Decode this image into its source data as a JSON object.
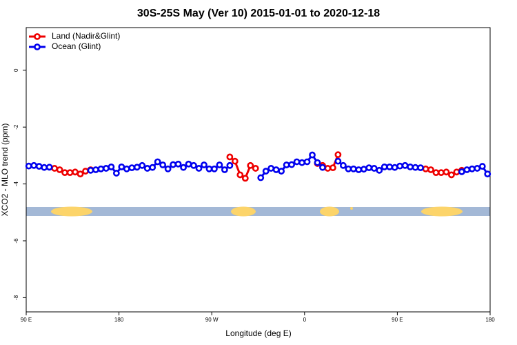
{
  "chart_data": {
    "type": "line",
    "title": "30S-25S May (Ver 10)   2015-01-01 to 2020-12-18",
    "xlabel": "Longitude (deg E)",
    "ylabel": "XCO2 - MLO trend (ppm)",
    "x": [
      92.5,
      97.5,
      102.5,
      107.5,
      112.5,
      117.5,
      122.5,
      127.5,
      132.5,
      137.5,
      142.5,
      147.5,
      152.5,
      157.5,
      162.5,
      167.5,
      172.5,
      177.5,
      182.5,
      187.5,
      192.5,
      197.5,
      202.5,
      207.5,
      212.5,
      217.5,
      222.5,
      227.5,
      232.5,
      237.5,
      242.5,
      247.5,
      252.5,
      257.5,
      262.5,
      267.5,
      272.5,
      277.5,
      282.5,
      287.5,
      292.5,
      297.5,
      302.5,
      307.5,
      312.5,
      317.5,
      322.5,
      327.5,
      332.5,
      337.5,
      342.5,
      347.5,
      352.5,
      357.5,
      362.5,
      367.5,
      372.5,
      377.5,
      382.5,
      387.5,
      392.5,
      397.5,
      402.5,
      407.5,
      412.5,
      417.5,
      422.5,
      427.5,
      432.5,
      437.5,
      442.5,
      447.5,
      452.5,
      457.5,
      462.5,
      467.5,
      472.5,
      477.5,
      482.5,
      487.5,
      492.5,
      497.5,
      502.5,
      507.5,
      512.5,
      517.5,
      522.5,
      527.5,
      532.5,
      537.5
    ],
    "series": [
      {
        "name": "Land (Nadir&Glint)",
        "color": "#ee0000",
        "values": [
          null,
          null,
          null,
          null,
          null,
          -3.45,
          -3.5,
          -3.6,
          -3.6,
          -3.58,
          -3.65,
          -3.55,
          -3.5,
          null,
          null,
          null,
          null,
          null,
          null,
          null,
          null,
          null,
          null,
          null,
          null,
          null,
          null,
          null,
          null,
          null,
          null,
          null,
          null,
          null,
          null,
          null,
          null,
          null,
          null,
          -3.05,
          -3.2,
          -3.68,
          -3.8,
          -3.35,
          -3.45,
          null,
          null,
          null,
          null,
          null,
          null,
          null,
          null,
          null,
          null,
          null,
          -3.28,
          -3.35,
          -3.45,
          -3.43,
          -2.97,
          null,
          null,
          null,
          null,
          null,
          null,
          null,
          null,
          null,
          null,
          null,
          null,
          null,
          null,
          null,
          null,
          -3.47,
          -3.5,
          -3.6,
          -3.6,
          -3.58,
          -3.68,
          -3.58,
          -3.52,
          null,
          null,
          null,
          null,
          null
        ]
      },
      {
        "name": "Ocean (Glint)",
        "color": "#0000ee",
        "values": [
          -3.37,
          -3.35,
          -3.38,
          -3.42,
          -3.41,
          null,
          null,
          null,
          null,
          null,
          null,
          null,
          -3.52,
          -3.5,
          -3.47,
          -3.45,
          -3.4,
          -3.62,
          -3.4,
          -3.47,
          -3.43,
          -3.41,
          -3.35,
          -3.45,
          -3.42,
          -3.22,
          -3.33,
          -3.47,
          -3.32,
          -3.3,
          -3.42,
          -3.3,
          -3.35,
          -3.45,
          -3.33,
          -3.47,
          -3.47,
          -3.33,
          -3.5,
          -3.35,
          null,
          null,
          null,
          null,
          null,
          -3.78,
          -3.55,
          -3.45,
          -3.5,
          -3.55,
          -3.33,
          -3.32,
          -3.22,
          -3.25,
          -3.22,
          -2.98,
          -3.25,
          -3.42,
          null,
          null,
          -3.2,
          -3.35,
          -3.47,
          -3.47,
          -3.5,
          -3.48,
          -3.43,
          -3.45,
          -3.52,
          -3.4,
          -3.4,
          -3.42,
          -3.37,
          -3.35,
          -3.4,
          -3.42,
          -3.43,
          null,
          null,
          null,
          null,
          null,
          null,
          null,
          -3.57,
          -3.5,
          -3.47,
          -3.45,
          -3.38,
          -3.65
        ]
      }
    ],
    "xlim": [
      90,
      540
    ],
    "xticks": [
      {
        "value": 90,
        "label": "90 E"
      },
      180,
      {
        "value": 270,
        "label": "90 W"
      },
      {
        "value": 360,
        "label": "0"
      },
      {
        "value": 450,
        "label": "90 E"
      },
      {
        "value": 540,
        "label": "180"
      }
    ],
    "ylim": [
      -8.5,
      1.5
    ],
    "yticks": [
      0,
      -2,
      -4,
      -6,
      -8
    ],
    "legend": "upper left"
  }
}
